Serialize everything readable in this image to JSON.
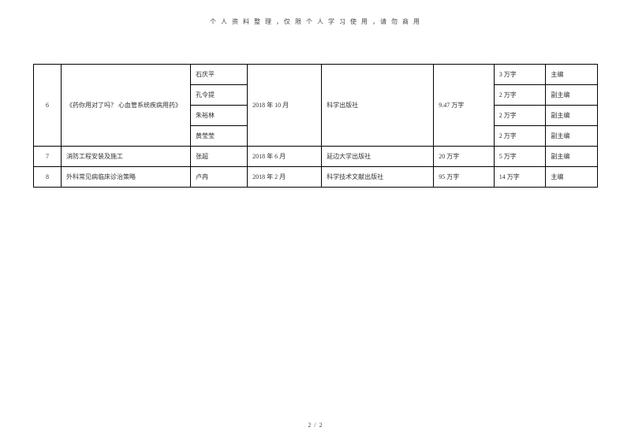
{
  "header_note": "个 人 资 料 整 理 ，仅 限 个 人 学 习 使 用 ，请 勿 商 用",
  "footer": "2 / 2",
  "table": {
    "rows": [
      {
        "num": "6",
        "title": "《药你用对了吗？ 心血管系统疾病用药》",
        "date": "2018 年 10 月",
        "publisher": "科学出版社",
        "total_words": "9.47 万字",
        "authors": [
          {
            "name": "石庆平",
            "words": "3 万字",
            "role": "主编"
          },
          {
            "name": "孔令提",
            "words": "2 万字",
            "role": "副主编"
          },
          {
            "name": "朱裕林",
            "words": "2 万字",
            "role": "副主编"
          },
          {
            "name": "黄莹莹",
            "words": "2 万字",
            "role": "副主编"
          }
        ]
      },
      {
        "num": "7",
        "title": "消防工程安装及施工",
        "author": "张超",
        "date": "2018 年 6 月",
        "publisher": "延边大学出版社",
        "total_words": "20 万字",
        "words": "5 万字",
        "role": "副主编"
      },
      {
        "num": "8",
        "title": "外科常见病临床诊治策略",
        "author": "卢冉",
        "date": "2018 年 2 月",
        "publisher": "科学技术文献出版社",
        "total_words": "95 万字",
        "words": "14 万字",
        "role": "主编"
      }
    ]
  }
}
